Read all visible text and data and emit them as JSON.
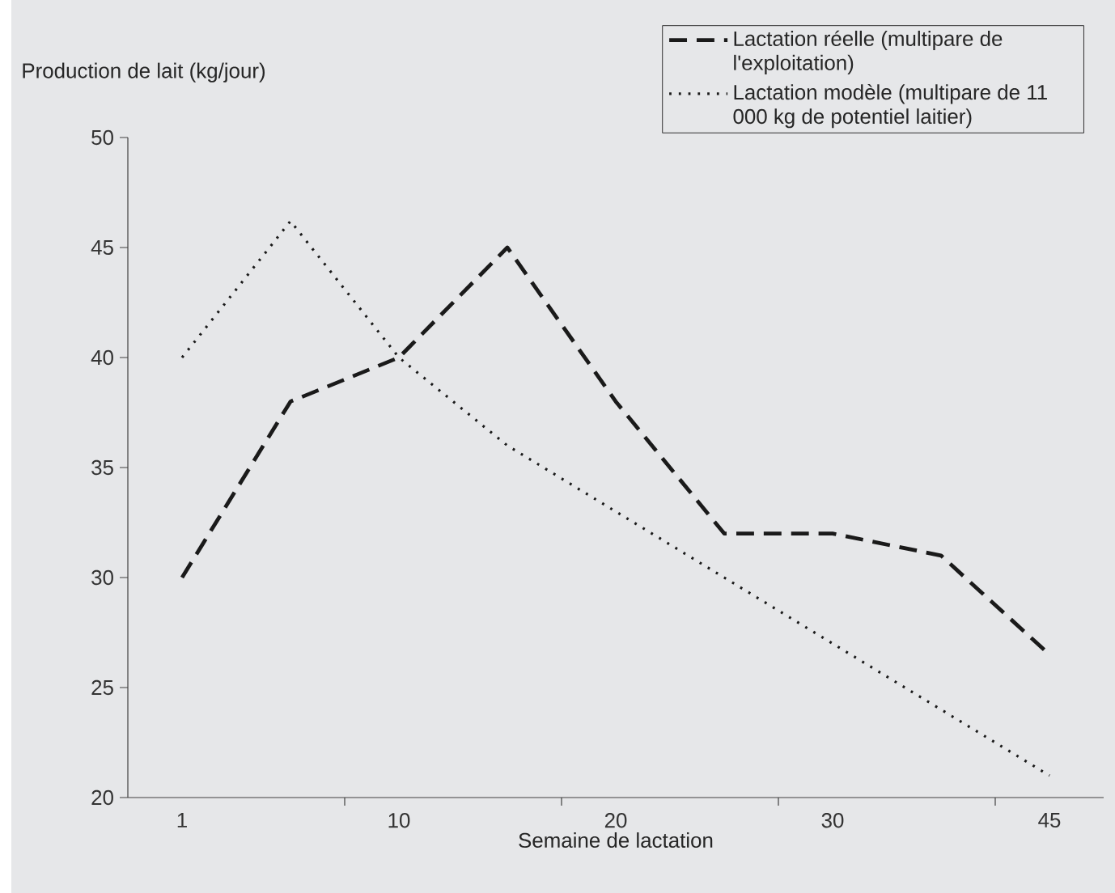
{
  "chart_data": {
    "type": "line",
    "ylabel": "Production de lait (kg/jour)",
    "xlabel": "Semaine de lactation",
    "categories": [
      "1",
      null,
      "10",
      null,
      "20",
      null,
      "30",
      null,
      "45"
    ],
    "ylim": [
      20,
      50
    ],
    "yticks": [
      20,
      25,
      30,
      35,
      40,
      45,
      50
    ],
    "legend": "top right",
    "grid": false,
    "series": [
      {
        "name": "Lactation réelle (multipare de l'exploitation)",
        "color": "#1a1a1a",
        "line_style": "dashed",
        "values": [
          30,
          38,
          40,
          45,
          38,
          32,
          32,
          31,
          26.5
        ]
      },
      {
        "name": "Lactation modèle (multipare de 11 000 kg de potentiel laitier)",
        "color": "#1a1a1a",
        "line_style": "dotted",
        "values": [
          40,
          46.2,
          40,
          36,
          33,
          30,
          27,
          24,
          21
        ]
      }
    ]
  }
}
